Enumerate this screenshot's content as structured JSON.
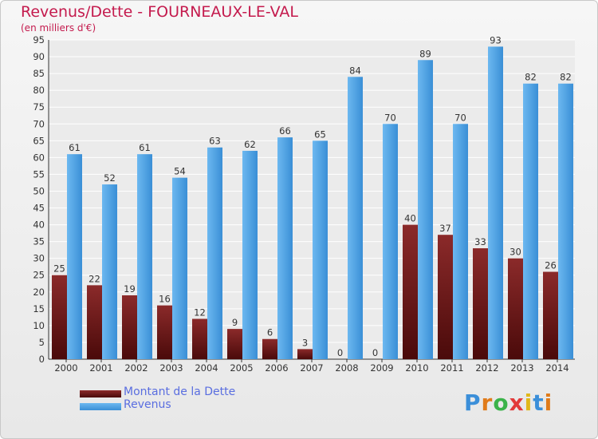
{
  "chart_data": {
    "type": "bar",
    "title": "Revenus/Dette - FOURNEAUX-LE-VAL",
    "subtitle": "(en milliers d'€)",
    "categories": [
      "2000",
      "2001",
      "2002",
      "2003",
      "2004",
      "2005",
      "2006",
      "2007",
      "2008",
      "2009",
      "2010",
      "2011",
      "2012",
      "2013",
      "2014"
    ],
    "series": [
      {
        "name": "Montant de la Dette",
        "color": "#7a1e1e",
        "values": [
          25,
          22,
          19,
          16,
          12,
          9,
          6,
          3,
          0,
          0,
          40,
          37,
          33,
          30,
          26
        ]
      },
      {
        "name": "Revenus",
        "color": "#4da3e6",
        "values": [
          61,
          52,
          61,
          54,
          63,
          62,
          66,
          65,
          84,
          70,
          89,
          70,
          93,
          82,
          82
        ]
      }
    ],
    "ylim": [
      0,
      95
    ],
    "ytick_step": 5,
    "grid": true,
    "legend_position": "bottom-left"
  },
  "logo": {
    "letters": [
      "P",
      "r",
      "o",
      "x",
      "i",
      "t",
      "i"
    ],
    "colors": [
      "#3b8fd9",
      "#e07b1a",
      "#3bb34a",
      "#e23a3a",
      "#e0b81a",
      "#3b8fd9",
      "#e07b1a"
    ]
  }
}
